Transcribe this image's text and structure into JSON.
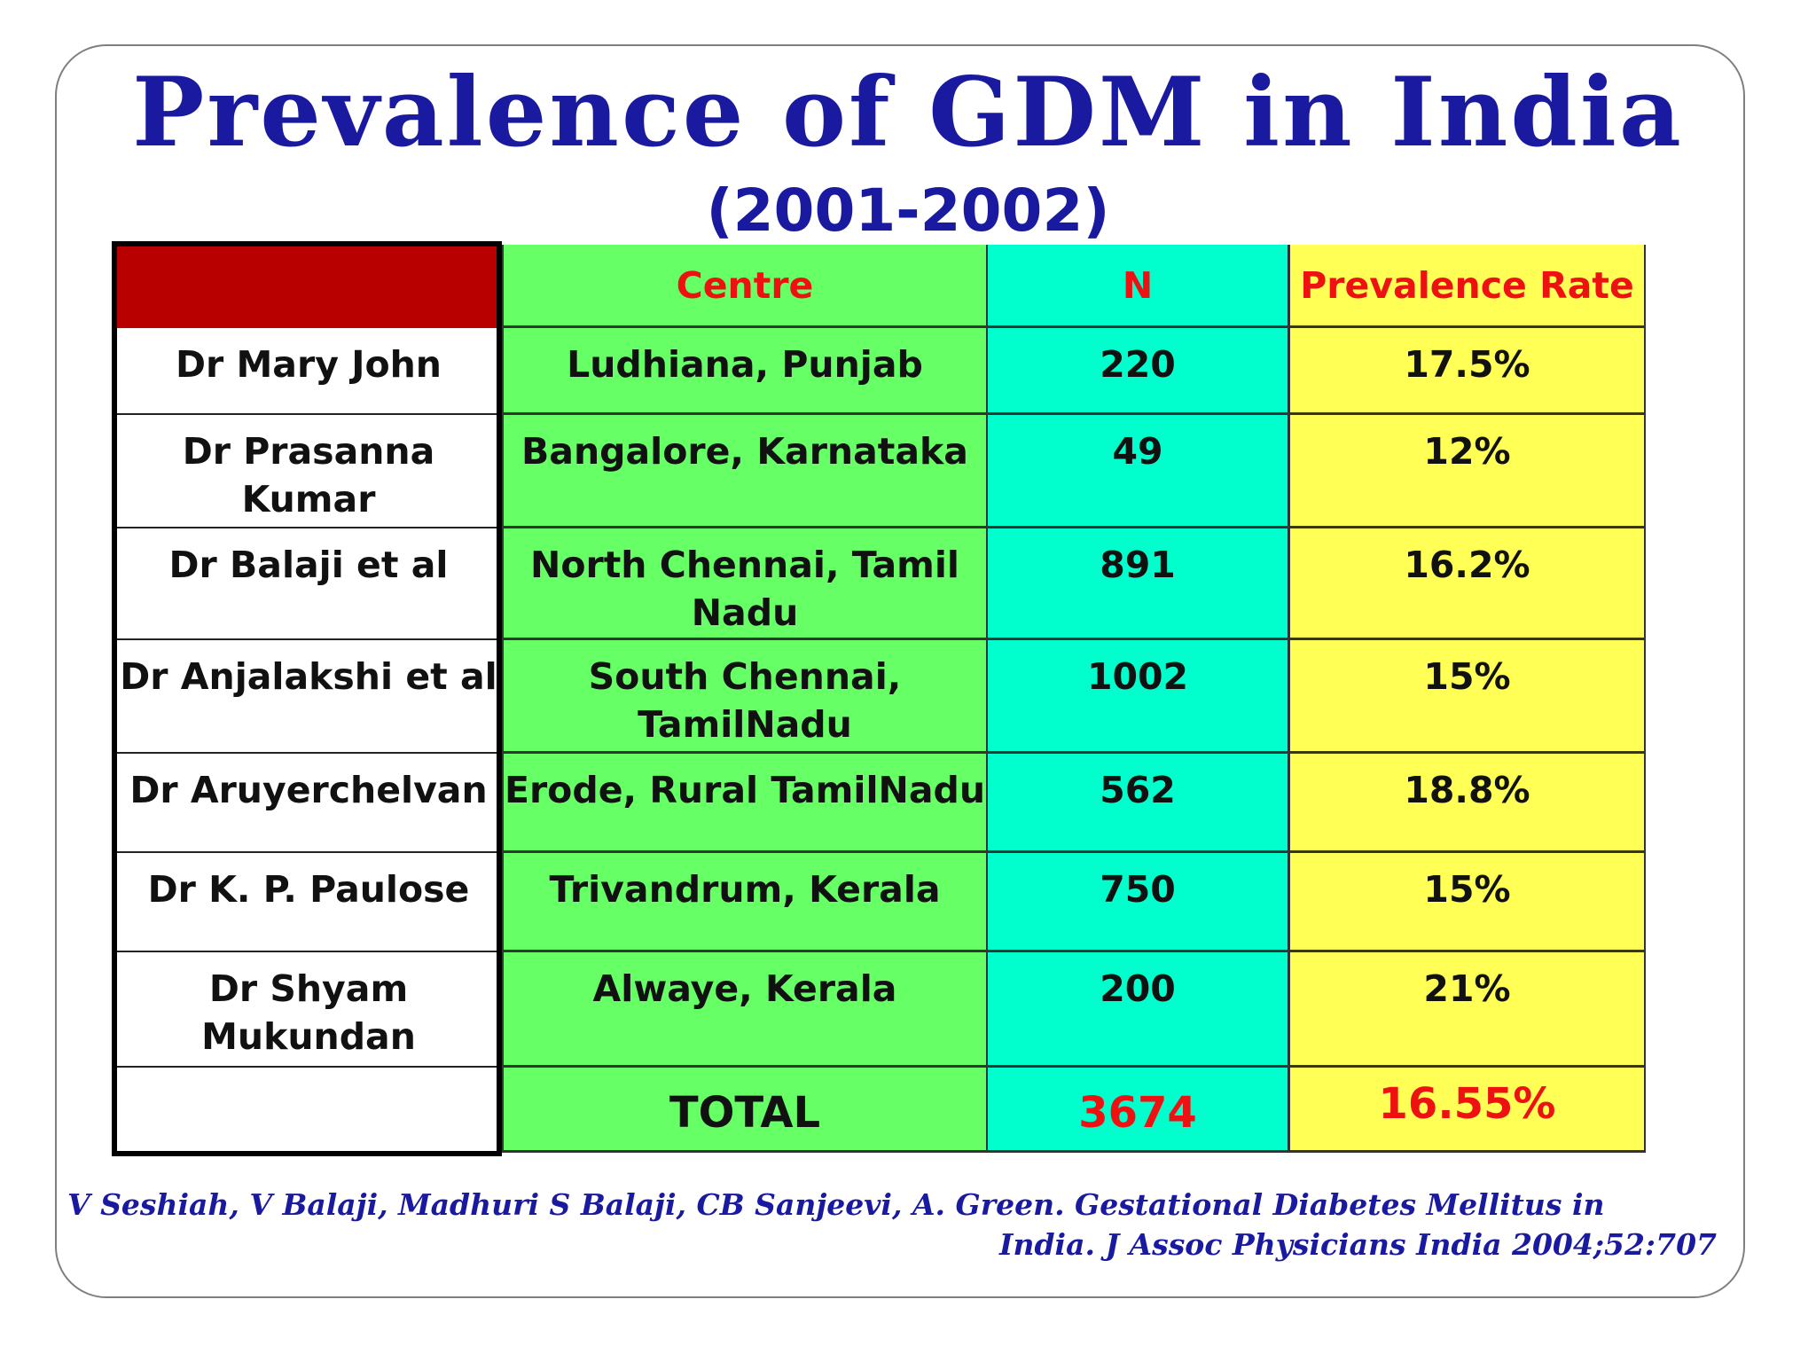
{
  "title": "Prevalence of GDM in India",
  "subtitle": "(2001-2002)",
  "colors": {
    "title": "#1a1aa0",
    "header_text": "#ee1111",
    "header_block": "#b80000",
    "centre_col": "#66ff66",
    "n_col": "#00ffcc",
    "rate_col": "#ffff55"
  },
  "chart_data": {
    "type": "table",
    "columns": [
      "",
      "Centre",
      "N",
      "Prevalence Rate"
    ],
    "rows": [
      {
        "investigator": "Dr Mary John",
        "centre": "Ludhiana, Punjab",
        "n": "220",
        "rate": "17.5%"
      },
      {
        "investigator": "Dr Prasanna Kumar",
        "centre": "Bangalore, Karnataka",
        "n": "49",
        "rate": "12%"
      },
      {
        "investigator": "Dr Balaji et al",
        "centre": "North Chennai, Tamil Nadu",
        "n": "891",
        "rate": "16.2%"
      },
      {
        "investigator": "Dr Anjalakshi et al",
        "centre": "South Chennai, TamilNadu",
        "n": "1002",
        "rate": "15%"
      },
      {
        "investigator": "Dr Aruyerchelvan",
        "centre": "Erode, Rural TamilNadu",
        "n": "562",
        "rate": "18.8%"
      },
      {
        "investigator": "Dr K. P. Paulose",
        "centre": "Trivandrum, Kerala",
        "n": "750",
        "rate": "15%"
      },
      {
        "investigator": "Dr Shyam Mukundan",
        "centre": "Alwaye, Kerala",
        "n": "200",
        "rate": "21%"
      }
    ],
    "total": {
      "label": "TOTAL",
      "n": "3674",
      "rate": "16.55%"
    }
  },
  "footer": {
    "line1": "V Seshiah, V Balaji, Madhuri S Balaji, CB Sanjeevi, A. Green. Gestational Diabetes Mellitus in",
    "line2": "India. J Assoc Physicians India 2004;52:707"
  }
}
